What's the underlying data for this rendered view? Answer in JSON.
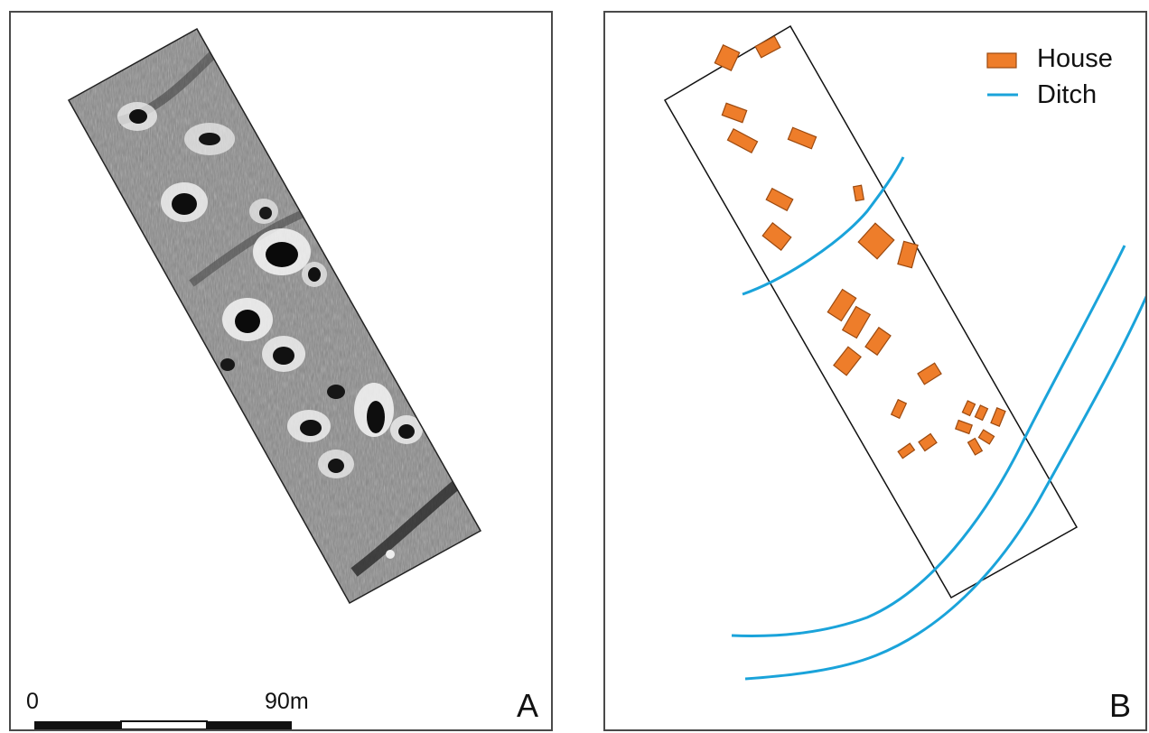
{
  "panel_a": {
    "letter": "A",
    "scale": {
      "start": "0",
      "end": "90",
      "unit": "m"
    }
  },
  "panel_b": {
    "letter": "B",
    "legend": [
      {
        "label": "House",
        "symbol": "rectangle",
        "fill": "#ee7d2a",
        "stroke": "#9c4a10"
      },
      {
        "label": "Ditch",
        "symbol": "line",
        "stroke": "#1aa3da"
      }
    ]
  },
  "colors": {
    "house_fill": "#ee7d2a",
    "house_stroke": "#9c4a10",
    "ditch": "#1aa3da",
    "survey_outline": "#111111",
    "raster_bg": "#8a8a8a"
  }
}
